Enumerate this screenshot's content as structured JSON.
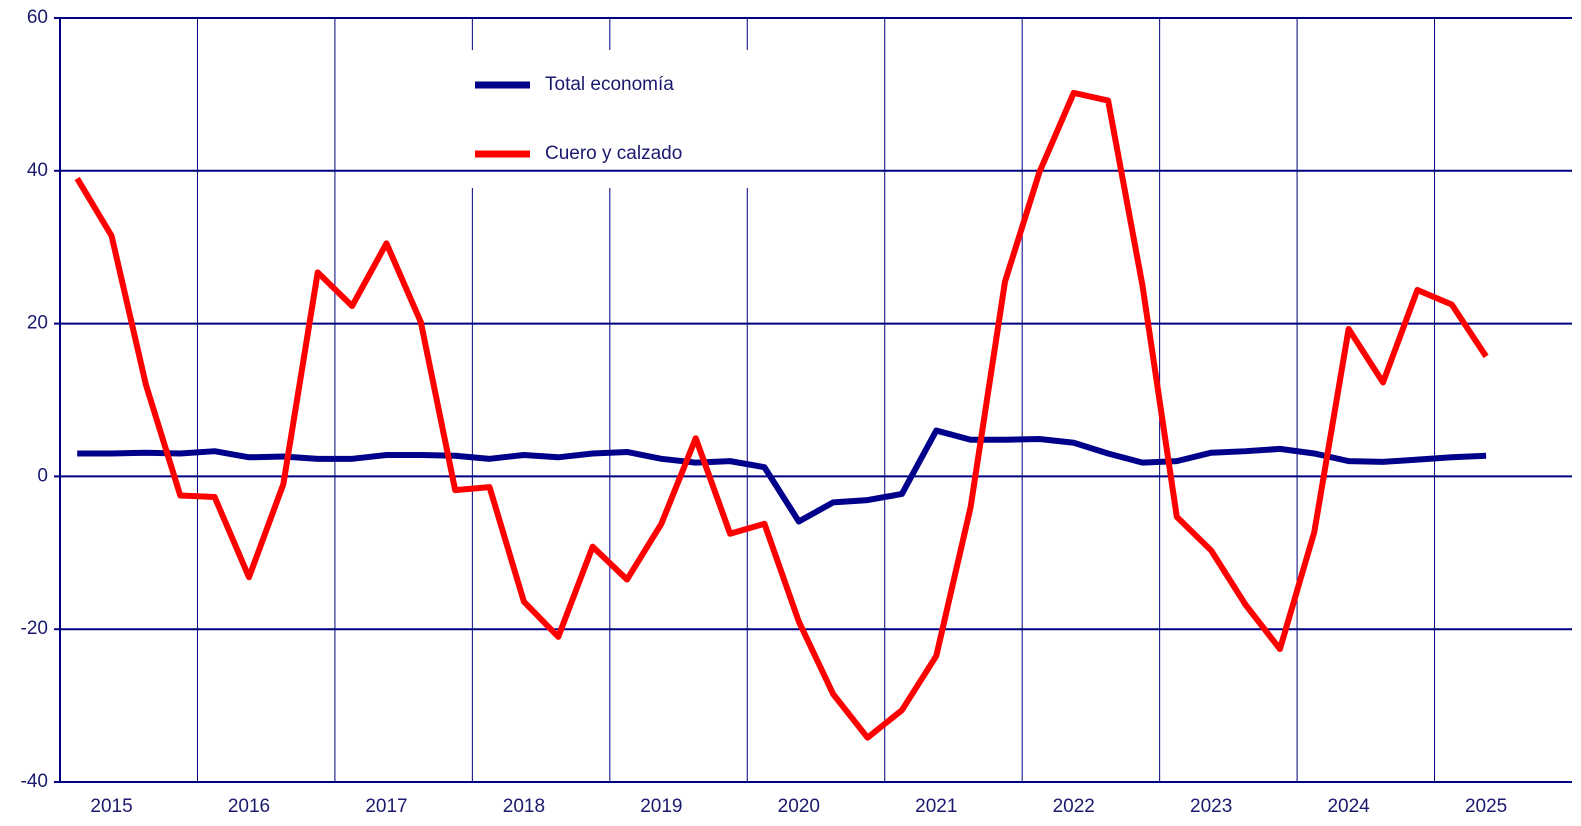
{
  "chart_data": {
    "type": "line",
    "categories": [
      null,
      "2015",
      null,
      null,
      null,
      "2016",
      null,
      null,
      null,
      "2017",
      null,
      null,
      null,
      "2018",
      null,
      null,
      null,
      "2019",
      null,
      null,
      null,
      "2020",
      null,
      null,
      null,
      "2021",
      null,
      null,
      null,
      "2022",
      null,
      null,
      null,
      "2023",
      null,
      null,
      null,
      "2024",
      null,
      null,
      null,
      "2025"
    ],
    "series": [
      {
        "name": "Total economía",
        "color": "#00008b",
        "values": [
          3,
          3,
          3.1,
          3,
          3.3,
          2.5,
          2.6,
          2.3,
          2.3,
          2.8,
          2.8,
          2.7,
          2.3,
          2.8,
          2.5,
          3,
          3.2,
          2.3,
          1.8,
          2,
          1.2,
          -5.9,
          -3.4,
          -3.1,
          -2.3,
          6,
          4.8,
          4.8,
          4.9,
          4.4,
          3,
          1.8,
          2,
          3.1,
          3.3,
          3.6,
          3,
          2,
          1.9,
          2.2,
          2.5,
          2.7
        ]
      },
      {
        "name": "Cuero y calzado",
        "color": "#ff0000",
        "values": [
          39,
          31.5,
          12,
          -2.5,
          -2.7,
          -13.2,
          -1,
          26.7,
          22.3,
          30.5,
          20.2,
          -1.8,
          -1.4,
          -16.4,
          -21,
          -9.2,
          -13.5,
          -6.2,
          5,
          -7.5,
          -6.2,
          -19,
          -28.5,
          -34.2,
          -30.6,
          -23.5,
          -4,
          25.5,
          39.8,
          50.2,
          49.2,
          25,
          -5.3,
          -9.7,
          -16.8,
          -22.6,
          -7.3,
          19.3,
          12.3,
          24.4,
          22.5,
          15.7
        ]
      }
    ],
    "ylim": [
      -40,
      60
    ],
    "yticks": [
      -40,
      -20,
      0,
      20,
      40,
      60
    ]
  }
}
